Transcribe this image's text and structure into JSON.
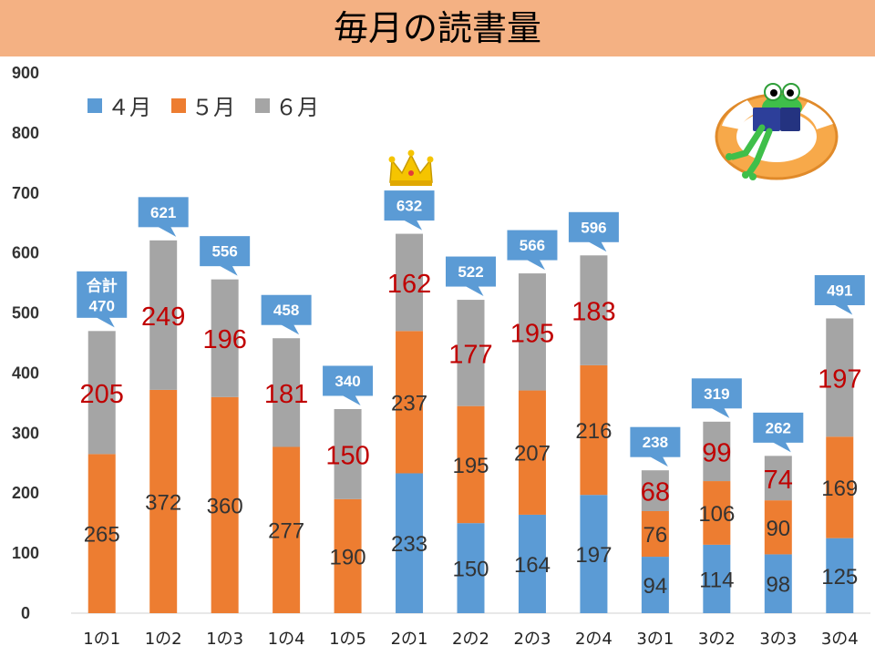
{
  "title": "毎月の読書量",
  "colors": {
    "april": "#5b9bd5",
    "may": "#ed7d31",
    "june": "#a5a5a5",
    "june_label": "#c00000",
    "callout": "#5b9bd5",
    "title_bg": "#f4b183"
  },
  "total_prefix": "合計",
  "chart_data": {
    "type": "bar",
    "stacked": true,
    "categories": [
      "1の1",
      "1の2",
      "1の3",
      "1の4",
      "1の5",
      "2の1",
      "2の2",
      "2の3",
      "2の4",
      "3の1",
      "3の2",
      "3の3",
      "3の4"
    ],
    "series": [
      {
        "name": "４月",
        "values": [
          0,
          0,
          0,
          0,
          0,
          233,
          150,
          164,
          197,
          94,
          114,
          98,
          125
        ]
      },
      {
        "name": "５月",
        "values": [
          265,
          372,
          360,
          277,
          190,
          237,
          195,
          207,
          216,
          76,
          106,
          90,
          169
        ]
      },
      {
        "name": "６月",
        "values": [
          205,
          249,
          196,
          181,
          150,
          162,
          177,
          195,
          183,
          68,
          99,
          74,
          197
        ]
      }
    ],
    "totals": [
      470,
      621,
      556,
      458,
      340,
      632,
      522,
      566,
      596,
      238,
      319,
      262,
      491
    ],
    "ylim": [
      0,
      900
    ],
    "yticks": [
      0,
      100,
      200,
      300,
      400,
      500,
      600,
      700,
      800,
      900
    ],
    "legend_position": "top-left",
    "grid": false,
    "highlight_category": "2の1"
  }
}
